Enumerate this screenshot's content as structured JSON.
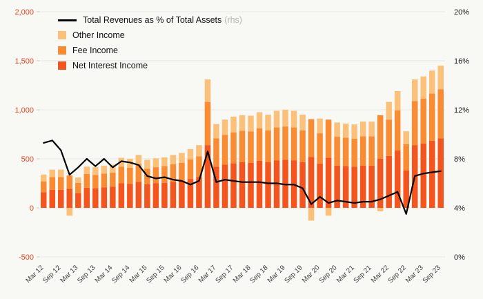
{
  "chart_data": {
    "type": "bar",
    "subtype": "stacked-bar-with-line-combo",
    "title": "",
    "grid": true,
    "legend_position": "top-left",
    "background_color": "#f8f8f5",
    "gridline_color": "#e7e7e2",
    "categories": [
      "Mar 12",
      "Jun 12",
      "Sep 12",
      "Dec 12",
      "Mar 13",
      "Jun 13",
      "Sep 13",
      "Dec 13",
      "Mar 14",
      "Jun 14",
      "Sep 14",
      "Dec 14",
      "Mar 15",
      "Jun 15",
      "Sep 15",
      "Dec 15",
      "Mar 16",
      "Jun 16",
      "Sep 16",
      "Dec 16",
      "Mar 17",
      "Jun 17",
      "Sep 17",
      "Dec 17",
      "Mar 18",
      "Jun 18",
      "Sep 18",
      "Dec 18",
      "Mar 19",
      "Jun 19",
      "Sep 19",
      "Dec 19",
      "Mar 20",
      "Jun 20",
      "Sep 20",
      "Dec 20",
      "Mar 21",
      "Jun 21",
      "Sep 21",
      "Dec 21",
      "Mar 22",
      "Jun 22",
      "Sep 22",
      "Dec 22",
      "Mar 23",
      "Jun 23",
      "Sep 23"
    ],
    "x_axis": {
      "label_step": 2,
      "shown_labels": [
        "Mar 12",
        "Sep 12",
        "Mar 13",
        "Sep 13",
        "Mar 14",
        "Sep 14",
        "Mar 15",
        "Sep 15",
        "Mar 16",
        "Sep 16",
        "Mar 17",
        "Sep 17",
        "Mar 18",
        "Sep 18",
        "Mar 19",
        "Sep 19",
        "Mar 20",
        "Sep 20",
        "Mar 21",
        "Sep 21",
        "Mar 22",
        "Sep 22",
        "Mar 23",
        "Sep 23"
      ],
      "label_color": "#3c3c3c"
    },
    "left_axis": {
      "min": -500,
      "max": 2000,
      "tick_values": [
        2000,
        1500,
        1000,
        500,
        0,
        -500
      ],
      "tick_labels": [
        "2,000",
        "1,500",
        "1,000",
        "500",
        "0",
        "-500"
      ],
      "color": "#e2431e"
    },
    "right_axis": {
      "min": 0,
      "max": 20,
      "tick_values": [
        20,
        16,
        12,
        8,
        4,
        0
      ],
      "tick_labels": [
        "20%",
        "16%",
        "12%",
        "8%",
        "4%",
        "0%"
      ],
      "color": "#1a1a1a"
    },
    "series": [
      {
        "name": "Net Interest Income",
        "type": "bar",
        "color": "#f4541d",
        "values": [
          160,
          185,
          185,
          195,
          150,
          205,
          200,
          210,
          215,
          250,
          245,
          265,
          240,
          250,
          255,
          265,
          275,
          295,
          315,
          640,
          420,
          440,
          455,
          465,
          460,
          480,
          465,
          485,
          490,
          485,
          465,
          520,
          450,
          510,
          430,
          425,
          420,
          430,
          430,
          500,
          530,
          585,
          380,
          640,
          655,
          685,
          710
        ]
      },
      {
        "name": "Fee Income",
        "type": "bar",
        "color": "#f98b33",
        "values": [
          110,
          130,
          130,
          135,
          105,
          140,
          135,
          140,
          145,
          170,
          165,
          180,
          160,
          165,
          170,
          180,
          185,
          200,
          210,
          440,
          290,
          305,
          315,
          320,
          320,
          330,
          325,
          335,
          340,
          335,
          325,
          385,
          310,
          390,
          295,
          290,
          285,
          300,
          300,
          445,
          370,
          410,
          270,
          450,
          460,
          480,
          500
        ]
      },
      {
        "name": "Other Income",
        "type": "bar",
        "color": "#fbc079",
        "values": [
          70,
          75,
          75,
          -80,
          55,
          75,
          80,
          80,
          80,
          90,
          90,
          95,
          90,
          90,
          90,
          95,
          100,
          105,
          115,
          230,
          145,
          155,
          160,
          160,
          160,
          165,
          160,
          170,
          170,
          170,
          160,
          -130,
          150,
          -80,
          145,
          145,
          145,
          150,
          150,
          -35,
          180,
          195,
          130,
          220,
          225,
          235,
          240
        ]
      },
      {
        "name": "Total Revenues as % of Total Assets",
        "type": "line",
        "axis": "right",
        "color": "#000000",
        "values": [
          9.3,
          9.5,
          8.7,
          6.7,
          7.3,
          8.0,
          7.4,
          8.0,
          7.3,
          7.8,
          7.7,
          7.5,
          6.6,
          6.4,
          6.5,
          6.3,
          6.2,
          5.9,
          6.2,
          8.6,
          6.1,
          6.3,
          6.2,
          6.1,
          6.1,
          6.1,
          6.0,
          6.0,
          5.9,
          5.9,
          5.6,
          4.3,
          4.9,
          4.4,
          4.6,
          4.5,
          4.4,
          4.5,
          4.5,
          4.7,
          5.0,
          5.3,
          3.5,
          6.6,
          6.8,
          6.9,
          7.0
        ]
      }
    ],
    "legend": [
      {
        "label": "Total Revenues as % of Total Assets",
        "suffix": "(rhs)",
        "marker": "line",
        "color": "#000000"
      },
      {
        "label": "Other Income",
        "marker": "swatch",
        "color": "#fbc079"
      },
      {
        "label": "Fee Income",
        "marker": "swatch",
        "color": "#f98b33"
      },
      {
        "label": "Net Interest Income",
        "marker": "swatch",
        "color": "#f4541d"
      }
    ]
  }
}
